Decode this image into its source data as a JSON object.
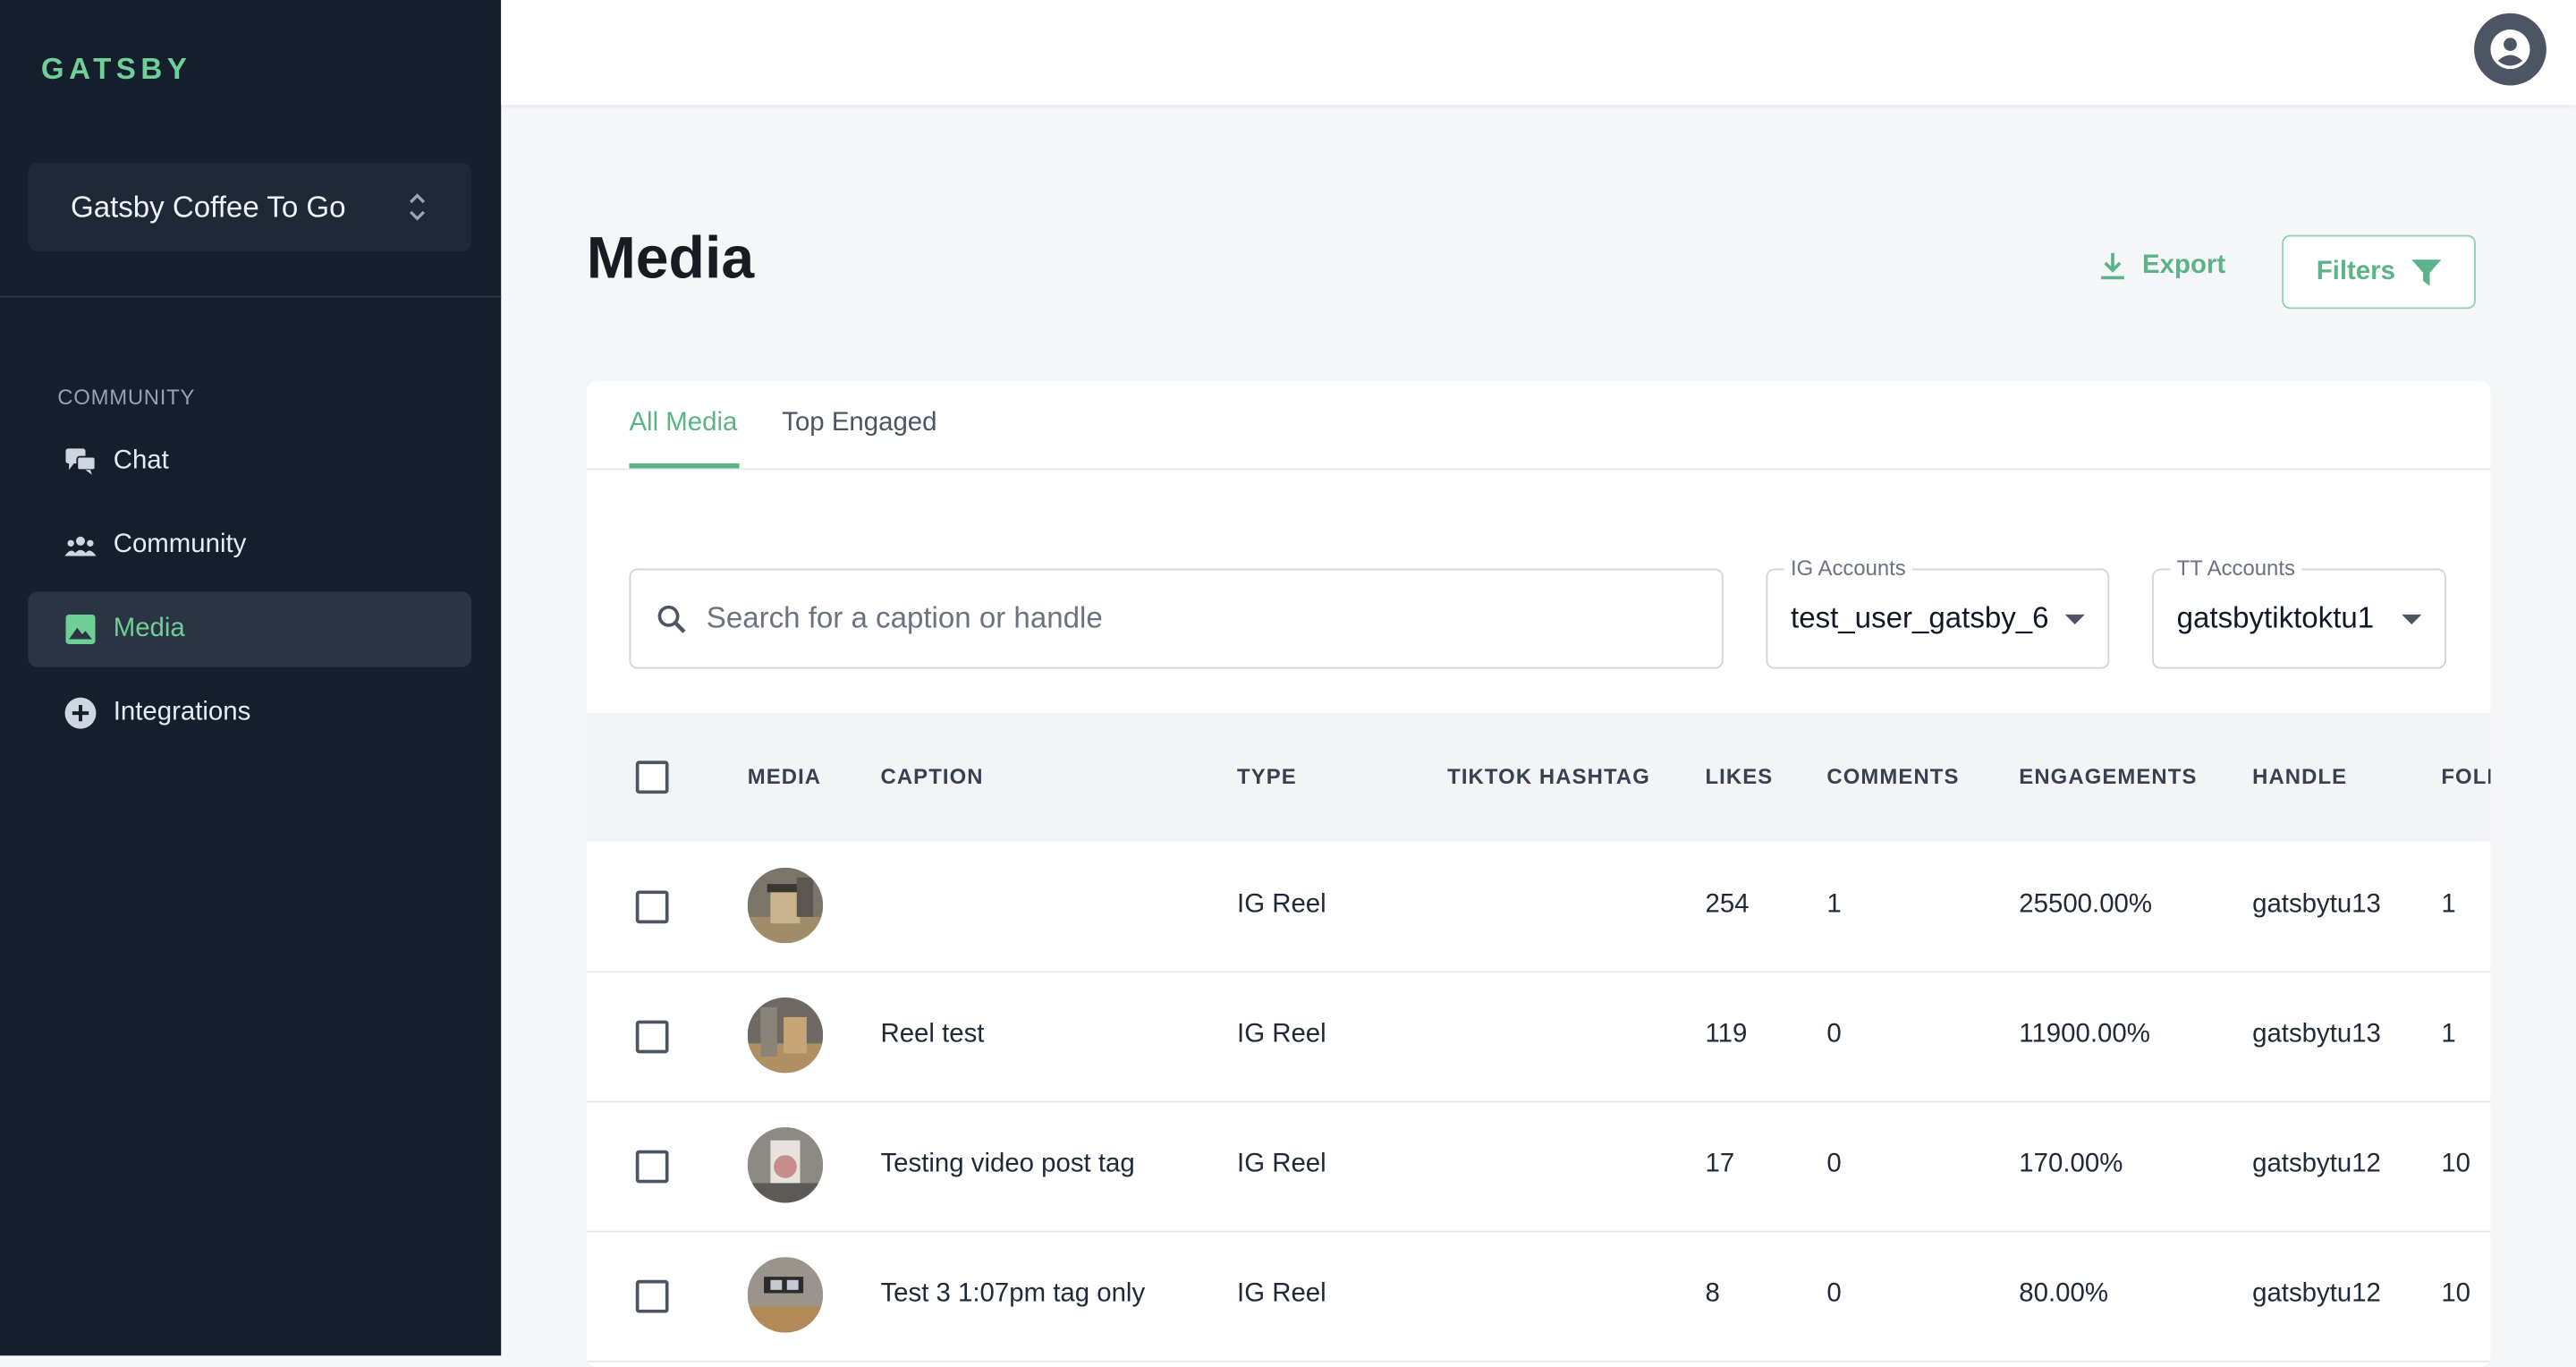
{
  "sidebar": {
    "logo": "GATSBY",
    "workspace": "Gatsby Coffee To Go",
    "section_label": "COMMUNITY",
    "items": [
      {
        "label": "Chat",
        "icon": "chat-icon"
      },
      {
        "label": "Community",
        "icon": "people-icon"
      },
      {
        "label": "Media",
        "icon": "image-icon",
        "active": true
      },
      {
        "label": "Integrations",
        "icon": "plus-circle-icon"
      }
    ],
    "colors": {
      "bg": "#151e2d",
      "accent": "#6fcf97"
    }
  },
  "header": {
    "avatar_icon": "account-circle-icon"
  },
  "page": {
    "title": "Media",
    "export_label": "Export",
    "filters_label": "Filters"
  },
  "tabs": [
    {
      "label": "All Media",
      "active": true
    },
    {
      "label": "Top Engaged",
      "active": false
    }
  ],
  "search": {
    "placeholder": "Search for a caption or handle",
    "value": ""
  },
  "ig_accounts": {
    "label": "IG Accounts",
    "value": "test_user_gatsby_6"
  },
  "tt_accounts": {
    "label": "TT Accounts",
    "value": "gatsbytiktoktu1"
  },
  "table": {
    "columns": [
      "MEDIA",
      "CAPTION",
      "TYPE",
      "TIKTOK HASHTAG",
      "LIKES",
      "COMMENTS",
      "ENGAGEMENTS",
      "HANDLE",
      "FOLL"
    ],
    "rows": [
      {
        "caption": "",
        "type": "IG Reel",
        "hashtag": "",
        "likes": "254",
        "comments": "1",
        "engagements": "25500.00%",
        "handle": "gatsbytu13",
        "followers": "1"
      },
      {
        "caption": "Reel test",
        "type": "IG Reel",
        "hashtag": "",
        "likes": "119",
        "comments": "0",
        "engagements": "11900.00%",
        "handle": "gatsbytu13",
        "followers": "1"
      },
      {
        "caption": "Testing video post tag",
        "type": "IG Reel",
        "hashtag": "",
        "likes": "17",
        "comments": "0",
        "engagements": "170.00%",
        "handle": "gatsbytu12",
        "followers": "10"
      },
      {
        "caption": "Test 3 1:07pm tag only",
        "type": "IG Reel",
        "hashtag": "",
        "likes": "8",
        "comments": "0",
        "engagements": "80.00%",
        "handle": "gatsbytu12",
        "followers": "10"
      }
    ]
  }
}
